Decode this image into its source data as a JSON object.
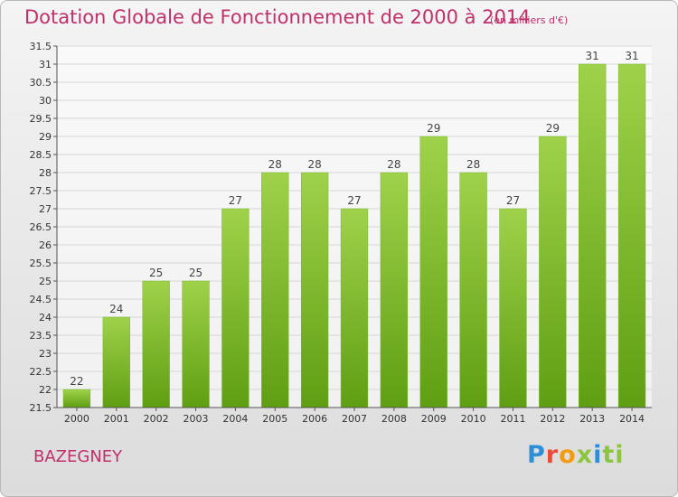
{
  "chart_data": {
    "type": "bar",
    "title": "Dotation Globale de Fonctionnement de 2000 à 2014",
    "subtitle": "(en milliers d'€)",
    "categories": [
      "2000",
      "2001",
      "2002",
      "2003",
      "2004",
      "2005",
      "2006",
      "2007",
      "2008",
      "2009",
      "2010",
      "2011",
      "2012",
      "2013",
      "2014"
    ],
    "values": [
      22,
      24,
      25,
      25,
      27,
      28,
      28,
      27,
      28,
      29,
      28,
      27,
      29,
      31,
      31
    ],
    "ylim": [
      21.5,
      31.5
    ],
    "yticks": [
      "21.5",
      "22",
      "22.5",
      "23",
      "23.5",
      "24",
      "24.5",
      "25",
      "25.5",
      "26",
      "26.5",
      "27",
      "27.5",
      "28",
      "28.5",
      "29",
      "29.5",
      "30",
      "30.5",
      "31",
      "31.5"
    ],
    "xlabel": "",
    "ylabel": "",
    "grid": true,
    "legend": "none",
    "bar_color": "#8cc63f"
  },
  "footer": {
    "commune": "BAZEGNEY",
    "logo_parts": [
      "P",
      "r",
      "o",
      "x",
      "i",
      "ti"
    ]
  }
}
